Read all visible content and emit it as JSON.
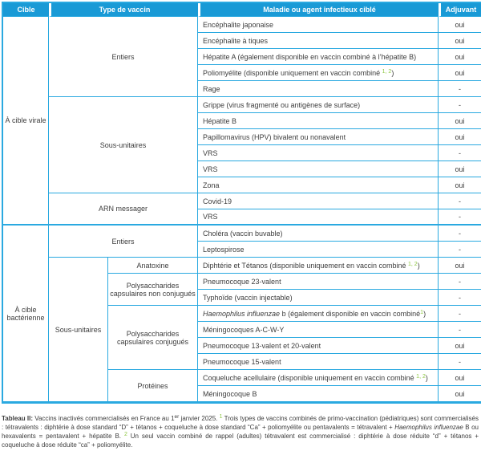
{
  "colors": {
    "header_bg": "#199ad6",
    "grid_border": "#2aa9e0",
    "footnote_green": "#8cc63f",
    "text": "#3d3d3d"
  },
  "table": {
    "headers": [
      "Cible",
      "Type de vaccin",
      "Maladie ou agent infectieux ciblé",
      "Adjuvant"
    ],
    "sections": [
      {
        "cible": "À cible virale",
        "groups": [
          {
            "label": "Entiers",
            "rows": [
              {
                "parts": [
                  {
                    "t": "Encéphalite japonaise"
                  }
                ],
                "adjuvant": "oui"
              },
              {
                "parts": [
                  {
                    "t": "Encéphalite à tiques"
                  }
                ],
                "adjuvant": "oui"
              },
              {
                "parts": [
                  {
                    "t": "Hépatite A (également disponible en vaccin combiné à l’hépatite B)"
                  }
                ],
                "adjuvant": "oui"
              },
              {
                "parts": [
                  {
                    "t": "Poliomyélite (disponible uniquement en vaccin combiné "
                  },
                  {
                    "t": "1, 2",
                    "style": "sup"
                  },
                  {
                    "t": ")"
                  }
                ],
                "adjuvant": "oui"
              },
              {
                "parts": [
                  {
                    "t": "Rage"
                  }
                ],
                "adjuvant": "-"
              }
            ]
          },
          {
            "label": "Sous-unitaires",
            "rows": [
              {
                "parts": [
                  {
                    "t": "Grippe (virus fragmenté ou antigènes de surface)"
                  }
                ],
                "adjuvant": "-"
              },
              {
                "parts": [
                  {
                    "t": "Hépatite B"
                  }
                ],
                "adjuvant": "oui"
              },
              {
                "parts": [
                  {
                    "t": "Papillomavirus (HPV) bivalent ou nonavalent"
                  }
                ],
                "adjuvant": "oui"
              },
              {
                "parts": [
                  {
                    "t": "VRS"
                  }
                ],
                "adjuvant": "-"
              },
              {
                "parts": [
                  {
                    "t": "VRS"
                  }
                ],
                "adjuvant": "oui"
              },
              {
                "parts": [
                  {
                    "t": "Zona"
                  }
                ],
                "adjuvant": "oui"
              }
            ]
          },
          {
            "label": "ARN messager",
            "rows": [
              {
                "parts": [
                  {
                    "t": "Covid-19"
                  }
                ],
                "adjuvant": "-"
              },
              {
                "parts": [
                  {
                    "t": "VRS"
                  }
                ],
                "adjuvant": "-"
              }
            ]
          }
        ]
      },
      {
        "cible": "À cible bactérienne",
        "groups": [
          {
            "label": "Entiers",
            "rows": [
              {
                "parts": [
                  {
                    "t": "Choléra (vaccin buvable)"
                  }
                ],
                "adjuvant": "-"
              },
              {
                "parts": [
                  {
                    "t": "Leptospirose"
                  }
                ],
                "adjuvant": "-"
              }
            ]
          },
          {
            "label": "Sous-unitaires",
            "subgroups": [
              {
                "label": "Anatoxine",
                "rows": [
                  {
                    "parts": [
                      {
                        "t": "Diphtérie et Tétanos (disponible uniquement en vaccin combiné "
                      },
                      {
                        "t": "1, 2",
                        "style": "sup"
                      },
                      {
                        "t": ")"
                      }
                    ],
                    "adjuvant": "oui"
                  }
                ]
              },
              {
                "label": "Polysaccharides capsulaires non conjugués",
                "rows": [
                  {
                    "parts": [
                      {
                        "t": "Pneumocoque 23-valent"
                      }
                    ],
                    "adjuvant": "-"
                  },
                  {
                    "parts": [
                      {
                        "t": "Typhoïde (vaccin injectable)"
                      }
                    ],
                    "adjuvant": "-"
                  }
                ]
              },
              {
                "label": "Polysaccharides capsulaires conjugués",
                "rows": [
                  {
                    "parts": [
                      {
                        "t": "Haemophilus influenzae",
                        "style": "italic"
                      },
                      {
                        "t": " b (également disponible en vaccin combiné"
                      },
                      {
                        "t": "1",
                        "style": "sup"
                      },
                      {
                        "t": ")"
                      }
                    ],
                    "adjuvant": "-"
                  },
                  {
                    "parts": [
                      {
                        "t": "Méningocoques A-C-W-Y"
                      }
                    ],
                    "adjuvant": "-"
                  },
                  {
                    "parts": [
                      {
                        "t": "Pneumocoque 13-valent et 20-valent"
                      }
                    ],
                    "adjuvant": "oui"
                  },
                  {
                    "parts": [
                      {
                        "t": "Pneumocoque 15-valent"
                      }
                    ],
                    "adjuvant": "-"
                  }
                ]
              },
              {
                "label": "Protéines",
                "rows": [
                  {
                    "parts": [
                      {
                        "t": "Coqueluche acellulaire (disponible uniquement en vaccin combiné "
                      },
                      {
                        "t": "1, 2",
                        "style": "sup"
                      },
                      {
                        "t": ")"
                      }
                    ],
                    "adjuvant": "oui"
                  },
                  {
                    "parts": [
                      {
                        "t": "Méningocoque B"
                      }
                    ],
                    "adjuvant": "oui"
                  }
                ]
              }
            ]
          }
        ]
      }
    ]
  },
  "caption": {
    "parts": [
      {
        "t": "Tableau II:",
        "style": "bold"
      },
      {
        "t": " Vaccins inactivés commercialisés en France au 1"
      },
      {
        "t": "er",
        "style": "dsup"
      },
      {
        "t": " janvier 2025. "
      },
      {
        "t": "1",
        "style": "sup"
      },
      {
        "t": " Trois types de vaccins combinés de primo-vaccination (pédiatriques) sont commercialisés : tétravalents : diphtérie à dose standard “D” + tétanos + coqueluche à dose standard “Ca” + poliomyélite ou pentavalents = tétravalent + "
      },
      {
        "t": "Haemophilus influenzae",
        "style": "italic"
      },
      {
        "t": " B ou hexavalents = pentavalent + hépatite B. "
      },
      {
        "t": "2",
        "style": "sup"
      },
      {
        "t": " Un seul vaccin combiné de rappel (adultes) tétravalent est commercialisé : diphtérie à dose réduite “d” + tétanos + coqueluche à dose réduite “ca” + poliomyélite."
      }
    ]
  }
}
